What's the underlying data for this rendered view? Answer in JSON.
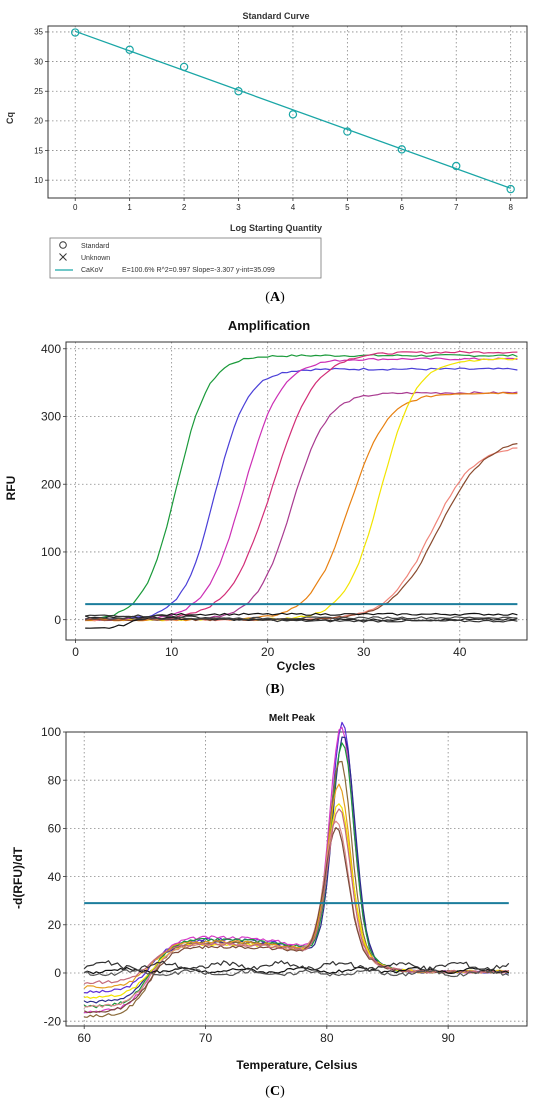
{
  "figure": {
    "captions": [
      "(A)",
      "(B)",
      "(C)"
    ]
  },
  "colors": {
    "curve": "#1aa6a6",
    "threshold": "#1b7d9c",
    "black": "#111111"
  },
  "chart_data": [
    {
      "type": "scatter",
      "title": "Standard Curve",
      "xlabel": "Log Starting Quantity",
      "ylabel": "Cq",
      "xlim": [
        -0.5,
        8.3
      ],
      "ylim": [
        7,
        36
      ],
      "xticks": [
        0,
        1,
        2,
        3,
        4,
        5,
        6,
        7,
        8
      ],
      "yticks": [
        10,
        15,
        20,
        25,
        30,
        35
      ],
      "grid": true,
      "series": [
        {
          "name": "Standard",
          "marker": "circle",
          "x": [
            0,
            1,
            2,
            3,
            4,
            5,
            6,
            7,
            8
          ],
          "y": [
            34.9,
            32.0,
            29.1,
            25.0,
            21.1,
            18.2,
            15.2,
            12.4,
            8.5
          ]
        },
        {
          "name": "Unknown",
          "marker": "x",
          "x": [],
          "y": []
        }
      ],
      "fit": {
        "name": "CaKoV",
        "slope": -3.307,
        "intercept": 35.099,
        "label": "E=100.6% R^2=0.997 Slope=-3.307 y-int=35.099"
      },
      "legend": [
        {
          "symbol": "circle",
          "label": "Standard"
        },
        {
          "symbol": "x",
          "label": "Unknown"
        },
        {
          "symbol": "line",
          "label": "CaKoV",
          "detail": "E=100.6% R^2=0.997 Slope=-3.307 y-int=35.099"
        }
      ]
    },
    {
      "type": "line",
      "title": "Amplification",
      "xlabel": "Cycles",
      "ylabel": "RFU",
      "xlim": [
        -1,
        47
      ],
      "ylim": [
        -30,
        410
      ],
      "xticks": [
        0,
        10,
        20,
        30,
        40
      ],
      "yticks": [
        0,
        100,
        200,
        300,
        400
      ],
      "grid": true,
      "threshold": 23,
      "x_range": [
        1,
        46
      ],
      "series": [
        {
          "color": "#1a9a3a",
          "base": 0,
          "plateau": 390,
          "mid": 10.5,
          "k": 0.6
        },
        {
          "color": "#4a3fd8",
          "base": 0,
          "plateau": 370,
          "mid": 14.5,
          "k": 0.6
        },
        {
          "color": "#cc2fb5",
          "base": 0,
          "plateau": 385,
          "mid": 17.5,
          "k": 0.52
        },
        {
          "color": "#d22d77",
          "base": 0,
          "plateau": 395,
          "mid": 20.5,
          "k": 0.45
        },
        {
          "color": "#a93a90",
          "base": 0,
          "plateau": 335,
          "mid": 22.5,
          "k": 0.55
        },
        {
          "color": "#e88010",
          "base": 0,
          "plateau": 335,
          "mid": 28.5,
          "k": 0.5
        },
        {
          "color": "#f2e400",
          "base": 0,
          "plateau": 385,
          "mid": 31.8,
          "k": 0.55
        },
        {
          "color": "#f0857a",
          "base": 0,
          "plateau": 258,
          "mid": 37.0,
          "k": 0.45
        },
        {
          "color": "#8a4a2e",
          "base": 0,
          "plateau": 268,
          "mid": 37.8,
          "k": 0.42
        },
        {
          "color": "#111111",
          "base": -14,
          "plateau": 8,
          "mid": 6,
          "k": 0.9
        },
        {
          "color": "#222222",
          "base": 4,
          "plateau": 0,
          "mid": 10,
          "k": 0.5
        },
        {
          "color": "#333333",
          "base": 6,
          "plateau": -2,
          "mid": 15,
          "k": 0.4
        },
        {
          "color": "#444444",
          "base": 2,
          "plateau": 3,
          "mid": 25,
          "k": 0.3
        }
      ]
    },
    {
      "type": "line",
      "title": "Melt Peak",
      "xlabel": "Temperature, Celsius",
      "ylabel": "-d(RFU)/dT",
      "xlim": [
        58.5,
        96.5
      ],
      "ylim": [
        -22,
        100
      ],
      "xticks": [
        60,
        70,
        80,
        90
      ],
      "yticks": [
        -20,
        0,
        20,
        40,
        60,
        80,
        100
      ],
      "grid": true,
      "threshold": 29,
      "x_range": [
        60,
        95
      ],
      "series": [
        {
          "color": "#5a2dd6",
          "start": -8,
          "peak": 95,
          "peak_t": 81.3,
          "width": 1.3,
          "hump": 14
        },
        {
          "color": "#d63ac8",
          "start": -16,
          "peak": 93,
          "peak_t": 81.2,
          "width": 1.35,
          "hump": 15
        },
        {
          "color": "#2a2a8a",
          "start": -12,
          "peak": 90,
          "peak_t": 81.4,
          "width": 1.3,
          "hump": 13
        },
        {
          "color": "#1a9a3a",
          "start": -14,
          "peak": 87,
          "peak_t": 81.3,
          "width": 1.3,
          "hump": 14
        },
        {
          "color": "#8a6a3a",
          "start": -18,
          "peak": 80,
          "peak_t": 81.1,
          "width": 1.3,
          "hump": 13
        },
        {
          "color": "#e5a020",
          "start": -6,
          "peak": 70,
          "peak_t": 81.0,
          "width": 1.3,
          "hump": 13
        },
        {
          "color": "#f2e400",
          "start": -10,
          "peak": 62,
          "peak_t": 81.0,
          "width": 1.4,
          "hump": 12
        },
        {
          "color": "#d98a8a",
          "start": -14,
          "peak": 55,
          "peak_t": 80.8,
          "width": 1.35,
          "hump": 12
        },
        {
          "color": "#7a4a3a",
          "start": -16,
          "peak": 52,
          "peak_t": 80.8,
          "width": 1.35,
          "hump": 11
        },
        {
          "color": "#c46a7a",
          "start": -4,
          "peak": 60,
          "peak_t": 81.0,
          "width": 1.3,
          "hump": 12
        },
        {
          "color": "#111111",
          "flat": true,
          "level": 1,
          "wiggle": 1.2
        },
        {
          "color": "#333333",
          "flat": true,
          "level": 3,
          "wiggle": 2.0
        },
        {
          "color": "#555555",
          "flat": true,
          "level": 0,
          "wiggle": 1.5
        }
      ]
    }
  ]
}
